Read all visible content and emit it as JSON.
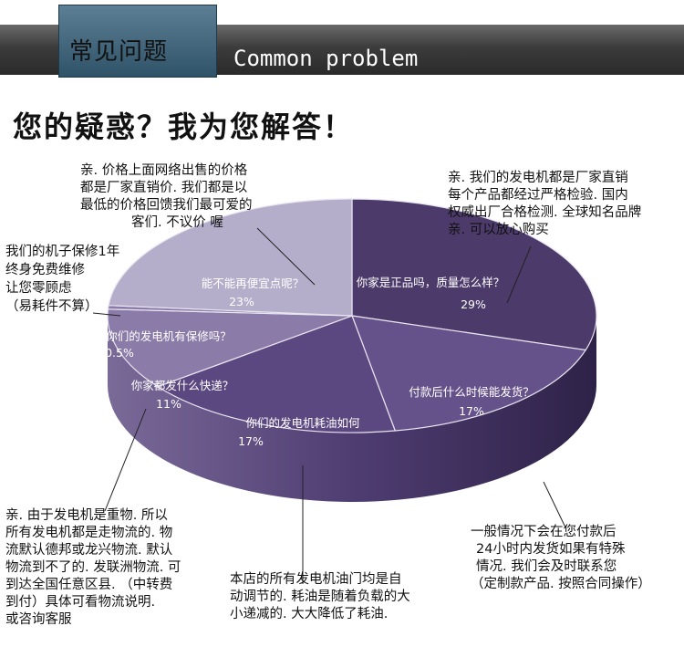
{
  "banner": {
    "title_cn": "常见问题",
    "title_en": "Common problem"
  },
  "heading": "您的疑惑？我为您解答！",
  "chart_data": {
    "type": "pie",
    "slices": [
      {
        "label": "你家是正品吗，质量怎么样？",
        "value_label": "29%",
        "value": 29,
        "color": "#4b3a6a"
      },
      {
        "label": "付款后什么时候能发货？",
        "value_label": "17%",
        "value": 17,
        "color": "#66528a"
      },
      {
        "label": "你们的发电机耗油如何",
        "value_label": "17%",
        "value": 17,
        "color": "#5c4880"
      },
      {
        "label": "你家都发什么快递？",
        "value_label": "11%",
        "value": 11,
        "color": "#8b7ba8"
      },
      {
        "label": "你们的发电机有保修吗？",
        "value_label": "0.5%",
        "value": 0.5,
        "color": "#8b7ba8"
      },
      {
        "label": "能不能再便宜点呢？",
        "value_label": "23%",
        "value": 23,
        "color": "#b5aecb"
      }
    ]
  },
  "notes": {
    "price": [
      "亲. 价格上面网络出售的价格",
      "都是厂家直销价. 我们都是以",
      "最低的价格回馈我们最可爱的",
      "客们. 不议价  喔"
    ],
    "quality": [
      "亲. 我们的发电机都是厂家直销",
      "每个产品都经过严格检验. 国内",
      "权威出厂合格检测. 全球知名品牌",
      "亲. 可以放心购买"
    ],
    "warranty": [
      "我们的机子保修1年",
      "终身免费维修",
      "让您零顾虑",
      "（易耗件不算）"
    ],
    "shipping": [
      "亲. 由于发电机是重物. 所以",
      "所有发电机都是走物流的. 物",
      "流默认德邦或龙兴物流. 默认",
      "物流到不了的. 发联洲物流. 可",
      "到达全国任意区县. （中转费",
      "到付）具体可看物流说明.",
      "或咨询客服"
    ],
    "fuel": [
      "本店的所有发电机油门均是自",
      "动调节的. 耗油是随着负载的大",
      "小递减的. 大大降低了耗油."
    ],
    "delivery": [
      "一般情况下会在您付款后",
      "24小时内发货如果有特殊",
      "情况. 我们会及时联系您",
      "（定制款产品. 按照合同操作）"
    ]
  }
}
